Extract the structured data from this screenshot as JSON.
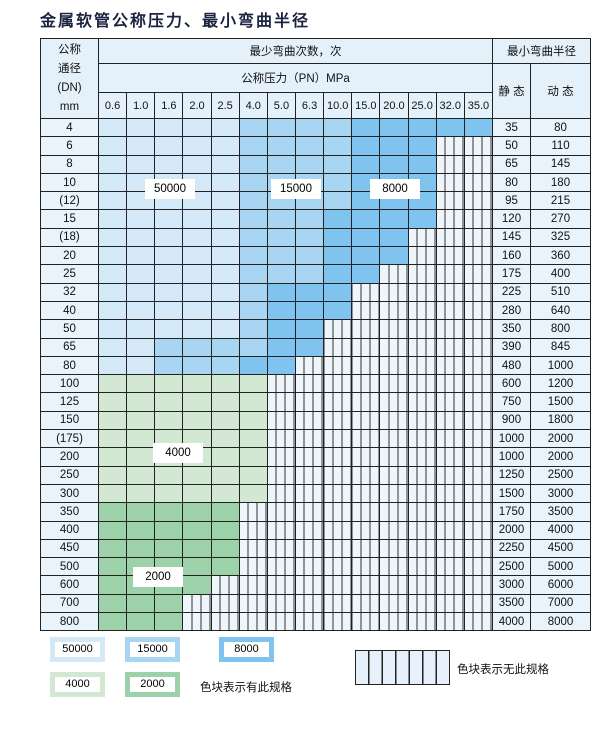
{
  "title": "金属软管公称压力、最小弯曲半径",
  "header": {
    "dn_label": [
      "公称",
      "通径",
      "(DN)",
      "mm"
    ],
    "cycles_label": "最少弯曲次数，次",
    "pressure_label": "公称压力（PN）MPa",
    "radius_label": "最小弯曲半径",
    "static_label": "静 态",
    "dynamic_label": "动 态",
    "pressures": [
      "0.6",
      "1.0",
      "1.6",
      "2.0",
      "2.5",
      "4.0",
      "5.0",
      "6.3",
      "10.0",
      "15.0",
      "20.0",
      "25.0",
      "32.0",
      "35.0"
    ]
  },
  "fill_legend_codes": {
    "L": "50000",
    "M": "15000",
    "D": "8000",
    "G": "4000",
    "H": "2000",
    "-": "none"
  },
  "colors": {
    "L": "#d3e9f8",
    "M": "#a8d5f2",
    "D": "#7fc4ee",
    "G": "#d2e8d3",
    "H": "#9dd1a9"
  },
  "rows": [
    {
      "dn": "4",
      "static": "35",
      "dynamic": "80",
      "cells": "LLLLLMMMMDDDDD"
    },
    {
      "dn": "6",
      "static": "50",
      "dynamic": "110",
      "cells": "LLLLLMMMMDDD--"
    },
    {
      "dn": "8",
      "static": "65",
      "dynamic": "145",
      "cells": "LLLLLMMMMDDD--"
    },
    {
      "dn": "10",
      "static": "80",
      "dynamic": "180",
      "cells": "LLLLLMMMMDDD--"
    },
    {
      "dn": "(12)",
      "static": "95",
      "dynamic": "215",
      "cells": "LLLLLMMMMDDD--"
    },
    {
      "dn": "15",
      "static": "120",
      "dynamic": "270",
      "cells": "LLLLLMMMDDDD--"
    },
    {
      "dn": "(18)",
      "static": "145",
      "dynamic": "325",
      "cells": "LLLLLMMMDDD---"
    },
    {
      "dn": "20",
      "static": "160",
      "dynamic": "360",
      "cells": "LLLLLMMMDDD---"
    },
    {
      "dn": "25",
      "static": "175",
      "dynamic": "400",
      "cells": "LLLLLMMMDD----"
    },
    {
      "dn": "32",
      "static": "225",
      "dynamic": "510",
      "cells": "LLLLLMDDD-----"
    },
    {
      "dn": "40",
      "static": "280",
      "dynamic": "640",
      "cells": "LLLLLMDDD-----"
    },
    {
      "dn": "50",
      "static": "350",
      "dynamic": "800",
      "cells": "LLLLLMDD------"
    },
    {
      "dn": "65",
      "static": "390",
      "dynamic": "845",
      "cells": "LLMMMMDD------"
    },
    {
      "dn": "80",
      "static": "480",
      "dynamic": "1000",
      "cells": "LLMMMDD-------"
    },
    {
      "dn": "100",
      "static": "600",
      "dynamic": "1200",
      "cells": "GGGGGG--------"
    },
    {
      "dn": "125",
      "static": "750",
      "dynamic": "1500",
      "cells": "GGGGGG--------"
    },
    {
      "dn": "150",
      "static": "900",
      "dynamic": "1800",
      "cells": "GGGGGG--------"
    },
    {
      "dn": "(175)",
      "static": "1000",
      "dynamic": "2000",
      "cells": "GGGGGG--------"
    },
    {
      "dn": "200",
      "static": "1000",
      "dynamic": "2000",
      "cells": "GGGGGG--------"
    },
    {
      "dn": "250",
      "static": "1250",
      "dynamic": "2500",
      "cells": "GGGGGG--------"
    },
    {
      "dn": "300",
      "static": "1500",
      "dynamic": "3000",
      "cells": "GGGGGG--------"
    },
    {
      "dn": "350",
      "static": "1750",
      "dynamic": "3500",
      "cells": "HHHHH---------"
    },
    {
      "dn": "400",
      "static": "2000",
      "dynamic": "4000",
      "cells": "HHHHH---------"
    },
    {
      "dn": "450",
      "static": "2250",
      "dynamic": "4500",
      "cells": "HHHHH---------"
    },
    {
      "dn": "500",
      "static": "2500",
      "dynamic": "5000",
      "cells": "HHHHH---------"
    },
    {
      "dn": "600",
      "static": "3000",
      "dynamic": "6000",
      "cells": "HHHH----------"
    },
    {
      "dn": "700",
      "static": "3500",
      "dynamic": "7000",
      "cells": "HHH-----------"
    },
    {
      "dn": "800",
      "static": "4000",
      "dynamic": "8000",
      "cells": "HHH-----------"
    }
  ],
  "zone_labels": {
    "z50000": "50000",
    "z15000": "15000",
    "z8000": "8000",
    "z4000": "4000",
    "z2000": "2000"
  },
  "legend": {
    "items": [
      "50000",
      "15000",
      "8000",
      "4000",
      "2000"
    ],
    "has_spec_text": "色块表示有此规格",
    "no_spec_text": "色块表示无此规格"
  }
}
